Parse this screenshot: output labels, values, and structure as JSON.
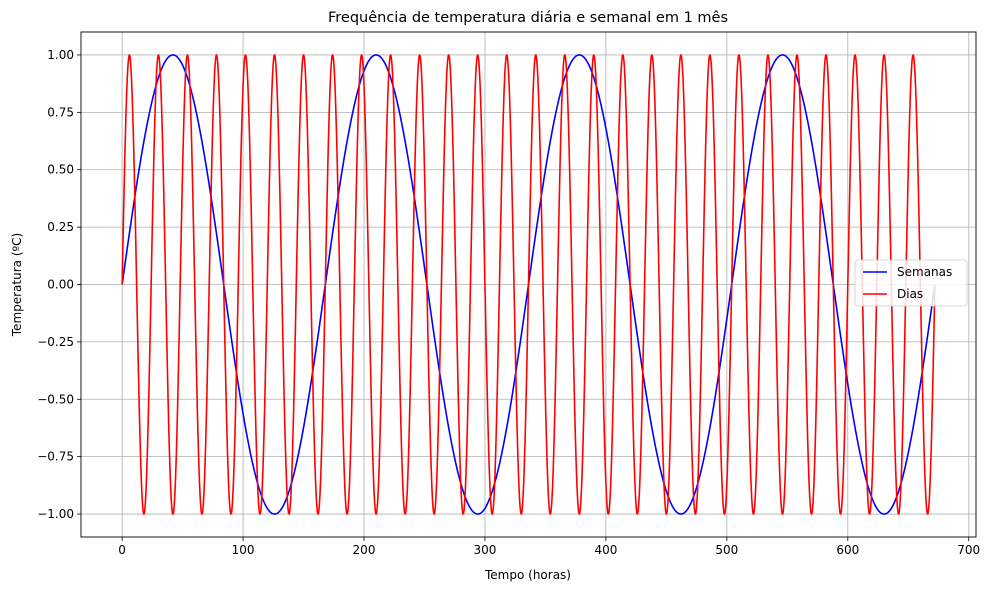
{
  "chart_data": {
    "type": "line",
    "title": "Frequência de temperatura diária e semanal em 1 mês",
    "xlabel": "Tempo (horas)",
    "ylabel": "Temperatura (ºC)",
    "xlim": [
      -34,
      706
    ],
    "ylim": [
      -1.1,
      1.1
    ],
    "x_range": [
      0,
      672
    ],
    "xticks": [
      0,
      100,
      200,
      300,
      400,
      500,
      600,
      700
    ],
    "xtick_labels": [
      "0",
      "100",
      "200",
      "300",
      "400",
      "500",
      "600",
      "700"
    ],
    "yticks": [
      1.0,
      0.75,
      0.5,
      0.25,
      0.0,
      -0.25,
      -0.5,
      -0.75,
      -1.0
    ],
    "ytick_labels": [
      "1.00",
      "0.75",
      "0.50",
      "0.25",
      "0.00",
      "−0.25",
      "−0.50",
      "−0.75",
      "−1.00"
    ],
    "grid": true,
    "legend_position": "center-right",
    "series": [
      {
        "name": "Semanas",
        "color": "#0000ff",
        "function": "sine",
        "period": 168,
        "amplitude": 1
      },
      {
        "name": "Dias",
        "color": "#ff0000",
        "function": "sine",
        "period": 24,
        "amplitude": 1
      }
    ]
  }
}
